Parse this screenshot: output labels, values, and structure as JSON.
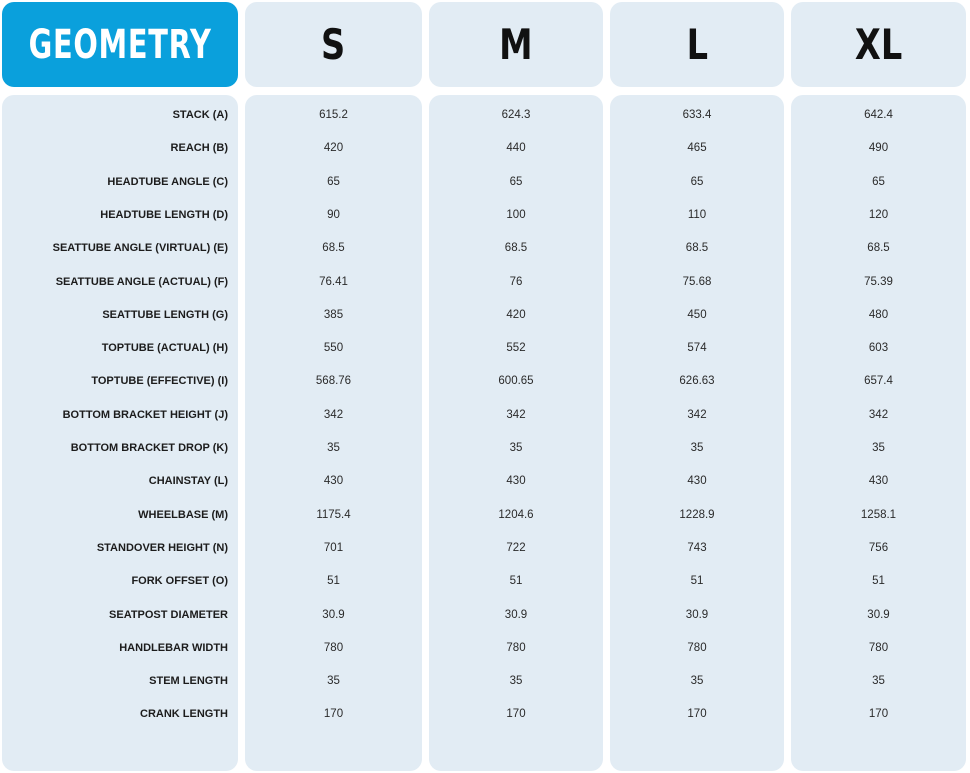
{
  "chart_data": {
    "type": "table",
    "title": "GEOMETRY",
    "columns": [
      "S",
      "M",
      "L",
      "XL"
    ],
    "rows": [
      {
        "label": "STACK (A)",
        "values": [
          "615.2",
          "624.3",
          "633.4",
          "642.4"
        ]
      },
      {
        "label": "REACH (B)",
        "values": [
          "420",
          "440",
          "465",
          "490"
        ]
      },
      {
        "label": "HEADTUBE ANGLE (C)",
        "values": [
          "65",
          "65",
          "65",
          "65"
        ]
      },
      {
        "label": "HEADTUBE LENGTH (D)",
        "values": [
          "90",
          "100",
          "110",
          "120"
        ]
      },
      {
        "label": "SEATTUBE ANGLE (VIRTUAL) (E)",
        "values": [
          "68.5",
          "68.5",
          "68.5",
          "68.5"
        ]
      },
      {
        "label": "SEATTUBE ANGLE (ACTUAL) (F)",
        "values": [
          "76.41",
          "76",
          "75.68",
          "75.39"
        ]
      },
      {
        "label": "SEATTUBE LENGTH (G)",
        "values": [
          "385",
          "420",
          "450",
          "480"
        ]
      },
      {
        "label": "TOPTUBE (ACTUAL) (H)",
        "values": [
          "550",
          "552",
          "574",
          "603"
        ]
      },
      {
        "label": "TOPTUBE (EFFECTIVE) (I)",
        "values": [
          "568.76",
          "600.65",
          "626.63",
          "657.4"
        ]
      },
      {
        "label": "BOTTOM BRACKET HEIGHT (J)",
        "values": [
          "342",
          "342",
          "342",
          "342"
        ]
      },
      {
        "label": "BOTTOM BRACKET DROP (K)",
        "values": [
          "35",
          "35",
          "35",
          "35"
        ]
      },
      {
        "label": "CHAINSTAY (L)",
        "values": [
          "430",
          "430",
          "430",
          "430"
        ]
      },
      {
        "label": "WHEELBASE (M)",
        "values": [
          "1175.4",
          "1204.6",
          "1228.9",
          "1258.1"
        ]
      },
      {
        "label": "STANDOVER HEIGHT (N)",
        "values": [
          "701",
          "722",
          "743",
          "756"
        ]
      },
      {
        "label": "FORK OFFSET (O)",
        "values": [
          "51",
          "51",
          "51",
          "51"
        ]
      },
      {
        "label": "SEATPOST DIAMETER",
        "values": [
          "30.9",
          "30.9",
          "30.9",
          "30.9"
        ]
      },
      {
        "label": "HANDLEBAR WIDTH",
        "values": [
          "780",
          "780",
          "780",
          "780"
        ]
      },
      {
        "label": "STEM LENGTH",
        "values": [
          "35",
          "35",
          "35",
          "35"
        ]
      },
      {
        "label": "CRANK LENGTH",
        "values": [
          "170",
          "170",
          "170",
          "170"
        ]
      }
    ],
    "colors": {
      "title_bg": "#0aa0dc",
      "card_bg": "#e2ecf4"
    }
  }
}
